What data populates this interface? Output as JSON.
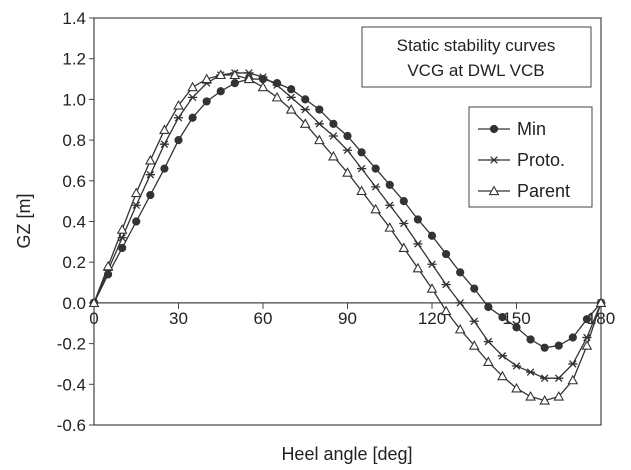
{
  "chart_data": {
    "type": "line",
    "title": "",
    "annotation_lines": [
      "Static stability curves",
      "VCG at DWL VCB"
    ],
    "xlabel": "Heel angle [deg]",
    "ylabel": "GZ [m]",
    "xlim": [
      0,
      180
    ],
    "ylim": [
      -0.6,
      1.4
    ],
    "xticks": [
      0,
      30,
      60,
      90,
      120,
      150,
      180
    ],
    "yticks": [
      -0.6,
      -0.4,
      -0.2,
      0.0,
      0.2,
      0.4,
      0.6,
      0.8,
      1.0,
      1.2,
      1.4
    ],
    "xtick_labels": [
      "0",
      "30",
      "60",
      "90",
      "120",
      "150",
      "180"
    ],
    "ytick_labels": [
      "-0.6",
      "-0.4",
      "-0.2",
      "0.0",
      "0.2",
      "0.4",
      "0.6",
      "0.8",
      "1.0",
      "1.2",
      "1.4"
    ],
    "grid": false,
    "legend_position": "right",
    "x": [
      0,
      5,
      10,
      15,
      20,
      25,
      30,
      35,
      40,
      45,
      50,
      55,
      60,
      65,
      70,
      75,
      80,
      85,
      90,
      95,
      100,
      105,
      110,
      115,
      120,
      125,
      130,
      135,
      140,
      145,
      150,
      155,
      160,
      165,
      170,
      175,
      180
    ],
    "series": [
      {
        "name": "Min",
        "marker": "circle",
        "values": [
          0.0,
          0.14,
          0.27,
          0.4,
          0.53,
          0.66,
          0.8,
          0.91,
          0.99,
          1.04,
          1.08,
          1.1,
          1.1,
          1.08,
          1.05,
          1.0,
          0.95,
          0.88,
          0.82,
          0.74,
          0.66,
          0.58,
          0.5,
          0.41,
          0.33,
          0.24,
          0.15,
          0.07,
          -0.02,
          -0.07,
          -0.12,
          -0.18,
          -0.22,
          -0.21,
          -0.17,
          -0.08,
          0.0
        ]
      },
      {
        "name": "Proto.",
        "marker": "star",
        "values": [
          0.0,
          0.16,
          0.32,
          0.48,
          0.63,
          0.78,
          0.91,
          1.01,
          1.08,
          1.12,
          1.13,
          1.13,
          1.11,
          1.07,
          1.01,
          0.95,
          0.88,
          0.82,
          0.75,
          0.66,
          0.57,
          0.48,
          0.39,
          0.29,
          0.19,
          0.09,
          0.0,
          -0.09,
          -0.19,
          -0.26,
          -0.31,
          -0.34,
          -0.37,
          -0.37,
          -0.3,
          -0.17,
          0.0
        ]
      },
      {
        "name": "Parent",
        "marker": "triangle",
        "values": [
          0.0,
          0.18,
          0.36,
          0.54,
          0.7,
          0.85,
          0.97,
          1.06,
          1.1,
          1.12,
          1.12,
          1.1,
          1.06,
          1.01,
          0.95,
          0.88,
          0.8,
          0.72,
          0.64,
          0.55,
          0.46,
          0.37,
          0.27,
          0.17,
          0.07,
          -0.04,
          -0.13,
          -0.21,
          -0.29,
          -0.36,
          -0.42,
          -0.46,
          -0.48,
          -0.46,
          -0.38,
          -0.21,
          0.0
        ]
      }
    ]
  }
}
